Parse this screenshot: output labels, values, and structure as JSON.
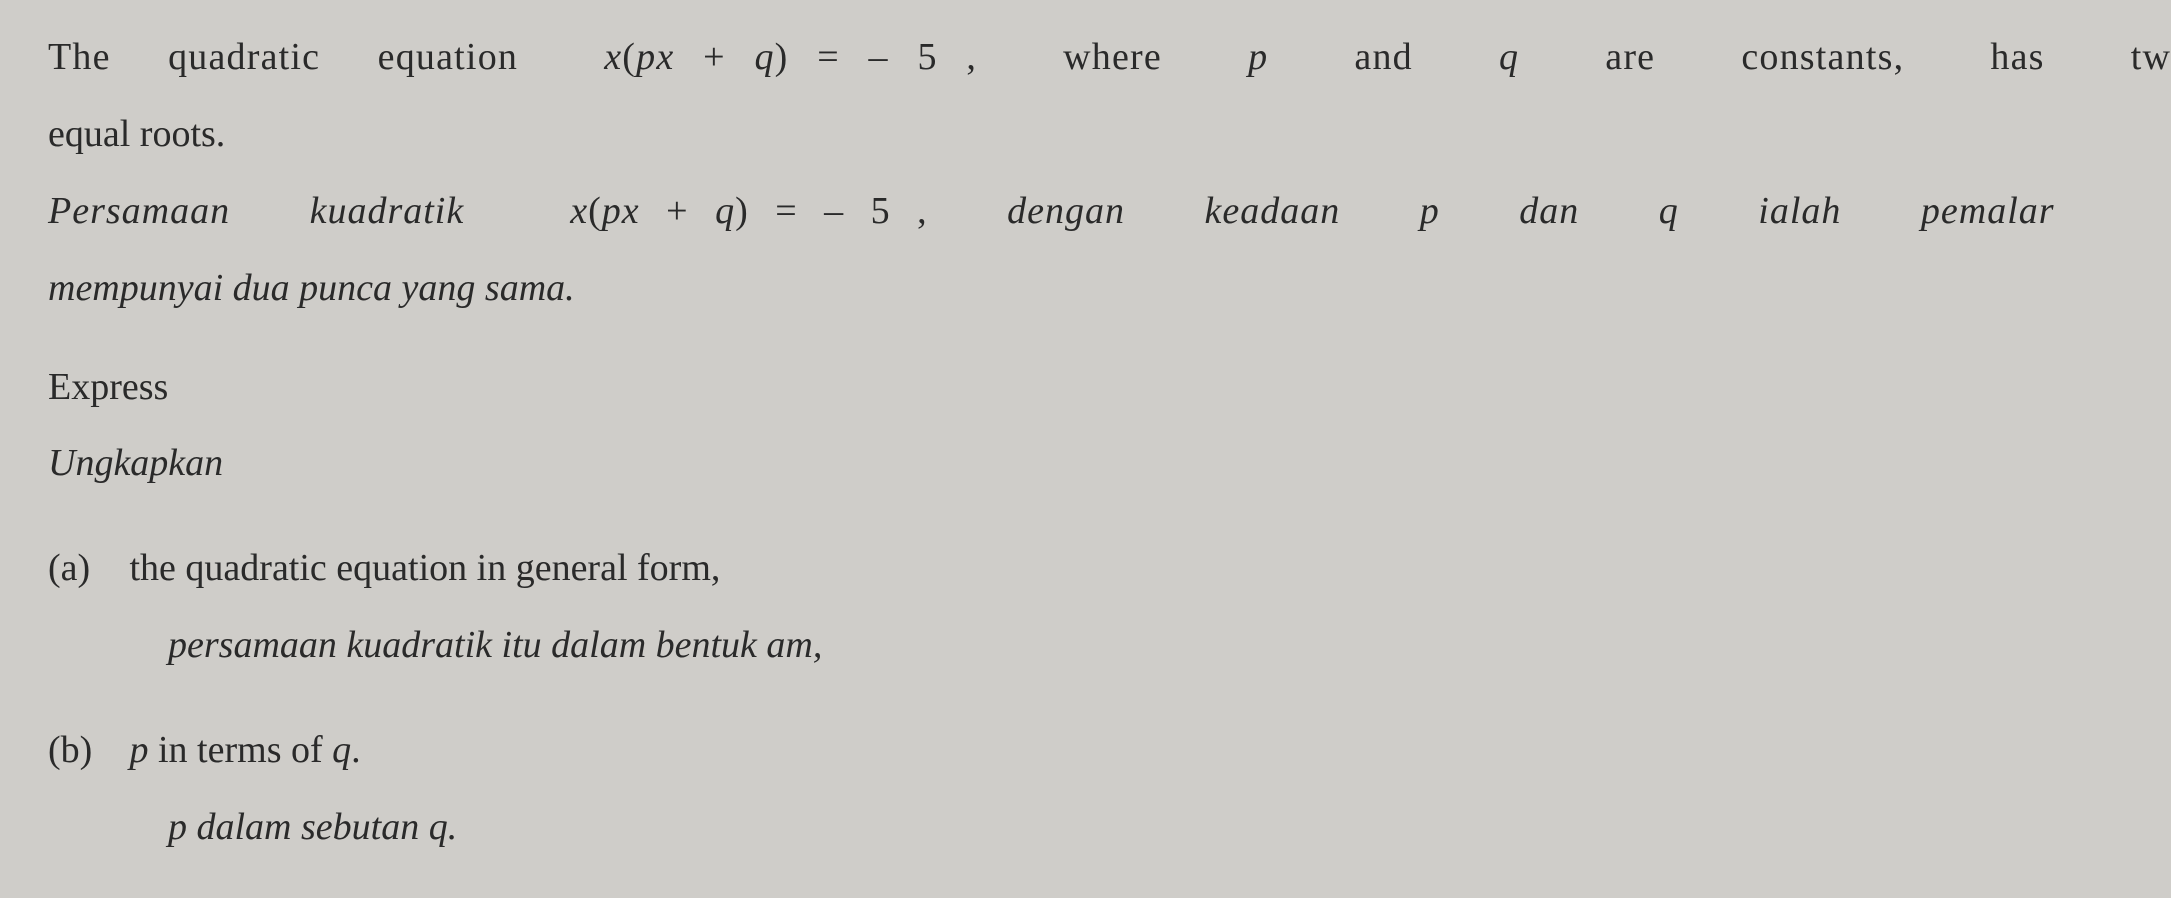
{
  "colors": {
    "background": "#cfcdc9",
    "text": "#2a2a2a"
  },
  "typography": {
    "font_family": "Times New Roman",
    "body_fontsize_pt": 28
  },
  "lines": {
    "en1": "The  quadratic  equation   x(px + q) = – 5 ,   where   p   and   q   are   constants,   has   tw",
    "en2": "equal roots.",
    "ms1": "Persamaan   kuadratik    x(px + q) = – 5 ,   dengan   keadaan   p   dan   q   ialah   pemalar",
    "ms2": "mempunyai dua punca yang sama.",
    "express_en": "Express",
    "express_ms": "Ungkapkan",
    "a_tag": "(a)",
    "a_en": "the quadratic equation in general form,",
    "a_ms": "persamaan kuadratik itu dalam bentuk am,",
    "b_tag": "(b)",
    "b_en_pre": "p",
    "b_en_post": " in terms of q.",
    "b_ms_pre": "p dalam sebutan q."
  }
}
